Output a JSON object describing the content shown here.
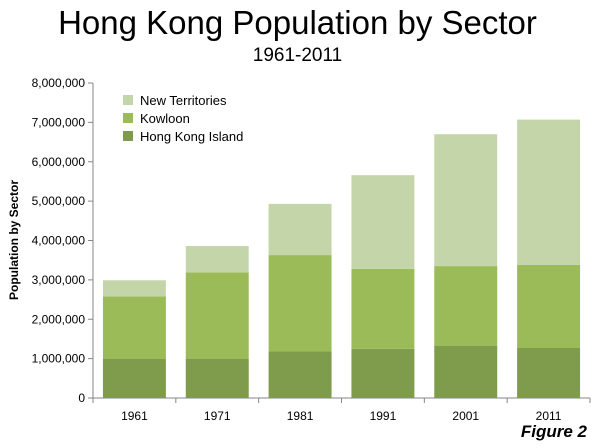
{
  "chart_data": {
    "type": "bar",
    "stacked": true,
    "title": "Hong Kong Population by Sector",
    "subtitle": "1961-2011",
    "ylabel": "Population by Sector",
    "xlabel": "",
    "ylim": [
      0,
      8000000
    ],
    "yticks": [
      0,
      1000000,
      2000000,
      3000000,
      4000000,
      5000000,
      6000000,
      7000000,
      8000000
    ],
    "ytick_labels": [
      "0",
      "1,000,000",
      "2,000,000",
      "3,000,000",
      "4,000,000",
      "5,000,000",
      "6,000,000",
      "7,000,000",
      "8,000,000"
    ],
    "categories": [
      "1961",
      "1971",
      "1981",
      "1991",
      "2001",
      "2011"
    ],
    "series": [
      {
        "name": "Hong Kong Island",
        "color": "#7f9b4c",
        "values": [
          1000000,
          1000000,
          1180000,
          1250000,
          1330000,
          1270000
        ]
      },
      {
        "name": "Kowloon",
        "color": "#9bbb59",
        "values": [
          1580000,
          2190000,
          2450000,
          2030000,
          2020000,
          2110000
        ]
      },
      {
        "name": "New Territories",
        "color": "#c4d6a9",
        "values": [
          410000,
          670000,
          1300000,
          2380000,
          3350000,
          3690000
        ]
      }
    ],
    "legend_order": [
      "New Territories",
      "Kowloon",
      "Hong Kong Island"
    ],
    "legend_position": "top-left",
    "grid": false
  },
  "figure_label": "Figure 2"
}
